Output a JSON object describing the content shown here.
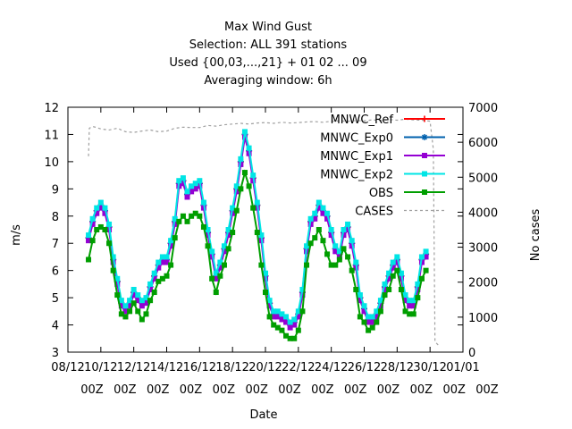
{
  "chart_data": {
    "type": "line",
    "title_lines": [
      "Max Wind Gust",
      "Selection: ALL    391 stations",
      "Used {00,03,...,21} + 01 02 ... 09",
      "Averaging window:  6h"
    ],
    "xlabel": "Date",
    "ylabel": "m/s",
    "y2label": "No cases",
    "ylim": [
      3,
      12
    ],
    "y2lim": [
      0,
      7000
    ],
    "yticks": [
      "3",
      "4",
      "5",
      "6",
      "7",
      "8",
      "9",
      "10",
      "11",
      "12"
    ],
    "y2ticks": [
      "0",
      "1000",
      "2000",
      "3000",
      "4000",
      "5000",
      "6000",
      "7000"
    ],
    "xlim_days": [
      0,
      24
    ],
    "xticks": [
      {
        "day": 0,
        "label": "08/12",
        "hour": "00Z"
      },
      {
        "day": 2,
        "label": "10/12",
        "hour": "00Z"
      },
      {
        "day": 4,
        "label": "12/12",
        "hour": "00Z"
      },
      {
        "day": 6,
        "label": "14/12",
        "hour": "00Z"
      },
      {
        "day": 8,
        "label": "16/12",
        "hour": "00Z"
      },
      {
        "day": 10,
        "label": "18/12",
        "hour": "00Z"
      },
      {
        "day": 12,
        "label": "20/12",
        "hour": "00Z"
      },
      {
        "day": 14,
        "label": "22/12",
        "hour": "00Z"
      },
      {
        "day": 16,
        "label": "24/12",
        "hour": "00Z"
      },
      {
        "day": 18,
        "label": "26/12",
        "hour": "00Z"
      },
      {
        "day": 20,
        "label": "28/12",
        "hour": "00Z"
      },
      {
        "day": 22,
        "label": "30/12",
        "hour": "00Z"
      },
      {
        "day": 24,
        "label": "01/01",
        "hour": "00Z"
      }
    ],
    "legend_position": "top-right",
    "grid": false,
    "x_days": [
      1.25,
      1.5,
      1.75,
      2,
      2.25,
      2.5,
      2.75,
      3,
      3.25,
      3.5,
      3.75,
      4,
      4.25,
      4.5,
      4.75,
      5,
      5.25,
      5.5,
      5.75,
      6,
      6.25,
      6.5,
      6.75,
      7,
      7.25,
      7.5,
      7.75,
      8,
      8.25,
      8.5,
      8.75,
      9,
      9.25,
      9.5,
      9.75,
      10,
      10.25,
      10.5,
      10.75,
      11,
      11.25,
      11.5,
      11.75,
      12,
      12.25,
      12.5,
      12.75,
      13,
      13.25,
      13.5,
      13.75,
      14,
      14.25,
      14.5,
      14.75,
      15,
      15.25,
      15.5,
      15.75,
      16,
      16.25,
      16.5,
      16.75,
      17,
      17.25,
      17.5,
      17.75,
      18,
      18.25,
      18.5,
      18.75,
      19,
      19.25,
      19.5,
      19.75,
      20,
      20.25,
      20.5,
      20.75,
      21,
      21.25,
      21.5,
      21.75,
      22,
      22.25,
      22.5
    ],
    "series": [
      {
        "name": "MNWC_Ref",
        "color": "#ff0000",
        "marker": "plus",
        "values": [
          7.2,
          7.8,
          8.2,
          8.4,
          8.2,
          7.6,
          6.4,
          5.6,
          4.8,
          4.6,
          4.8,
          5.2,
          5.0,
          4.8,
          4.9,
          5.4,
          5.8,
          6.2,
          6.4,
          6.4,
          7.0,
          7.8,
          9.2,
          9.3,
          8.8,
          9.0,
          9.1,
          9.2,
          8.4,
          7.4,
          6.6,
          5.8,
          6.2,
          6.8,
          7.4,
          8.2,
          9.0,
          10.0,
          11.0,
          10.4,
          9.4,
          8.4,
          7.2,
          5.8,
          4.8,
          4.4,
          4.4,
          4.3,
          4.2,
          4.0,
          4.1,
          4.4,
          5.2,
          6.8,
          7.8,
          8.0,
          8.4,
          8.2,
          8.0,
          7.4,
          6.8,
          6.6,
          7.4,
          7.6,
          7.0,
          6.2,
          5.0,
          4.6,
          4.2,
          4.2,
          4.4,
          4.8,
          5.4,
          5.8,
          6.2,
          6.4,
          5.8,
          5.0,
          4.8,
          4.8,
          5.4,
          6.4,
          6.6
        ]
      },
      {
        "name": "MNWC_Exp0",
        "color": "#0060ad",
        "marker": "star",
        "values": [
          7.2,
          7.8,
          8.2,
          8.4,
          8.2,
          7.6,
          6.4,
          5.6,
          4.8,
          4.6,
          4.8,
          5.2,
          5.0,
          4.8,
          4.9,
          5.4,
          5.8,
          6.2,
          6.4,
          6.4,
          7.0,
          7.8,
          9.2,
          9.3,
          8.8,
          9.0,
          9.1,
          9.2,
          8.4,
          7.4,
          6.6,
          5.8,
          6.2,
          6.8,
          7.4,
          8.2,
          9.0,
          10.0,
          11.0,
          10.4,
          9.4,
          8.4,
          7.2,
          5.8,
          4.8,
          4.4,
          4.4,
          4.3,
          4.2,
          4.0,
          4.1,
          4.4,
          5.2,
          6.8,
          7.8,
          8.0,
          8.4,
          8.2,
          8.0,
          7.4,
          6.8,
          6.6,
          7.4,
          7.6,
          7.0,
          6.2,
          5.0,
          4.6,
          4.2,
          4.2,
          4.4,
          4.8,
          5.4,
          5.8,
          6.2,
          6.4,
          5.8,
          5.0,
          4.8,
          4.8,
          5.4,
          6.4,
          6.6
        ]
      },
      {
        "name": "MNWC_Exp1",
        "color": "#9400d3",
        "marker": "square",
        "values": [
          7.1,
          7.7,
          8.1,
          8.3,
          8.1,
          7.5,
          6.3,
          5.5,
          4.7,
          4.5,
          4.7,
          5.1,
          4.9,
          4.7,
          4.8,
          5.3,
          5.7,
          6.1,
          6.3,
          6.3,
          6.9,
          7.7,
          9.1,
          9.2,
          8.7,
          8.9,
          9.0,
          9.1,
          8.3,
          7.3,
          6.5,
          5.7,
          6.1,
          6.7,
          7.3,
          8.1,
          8.9,
          9.9,
          10.9,
          10.3,
          9.3,
          8.3,
          7.1,
          5.7,
          4.7,
          4.3,
          4.3,
          4.2,
          4.1,
          3.9,
          4.0,
          4.3,
          5.1,
          6.7,
          7.7,
          7.9,
          8.3,
          8.1,
          7.9,
          7.3,
          6.7,
          6.5,
          7.3,
          7.5,
          6.9,
          6.1,
          4.9,
          4.5,
          4.1,
          4.1,
          4.3,
          4.7,
          5.3,
          5.7,
          6.1,
          6.3,
          5.7,
          4.9,
          4.7,
          4.7,
          5.3,
          6.3,
          6.5
        ]
      },
      {
        "name": "MNWC_Exp2",
        "color": "#00e5e5",
        "marker": "square",
        "values": [
          7.3,
          7.9,
          8.3,
          8.5,
          8.3,
          7.7,
          6.5,
          5.7,
          4.9,
          4.7,
          4.9,
          5.3,
          5.1,
          4.9,
          5.0,
          5.5,
          5.9,
          6.3,
          6.5,
          6.5,
          7.1,
          7.9,
          9.3,
          9.4,
          8.9,
          9.1,
          9.2,
          9.3,
          8.5,
          7.5,
          6.7,
          5.9,
          6.3,
          6.9,
          7.5,
          8.3,
          9.1,
          10.1,
          11.1,
          10.5,
          9.5,
          8.5,
          7.3,
          5.9,
          4.9,
          4.5,
          4.5,
          4.4,
          4.3,
          4.1,
          4.2,
          4.5,
          5.3,
          6.9,
          7.9,
          8.1,
          8.5,
          8.3,
          8.1,
          7.5,
          6.9,
          6.7,
          7.5,
          7.7,
          7.1,
          6.3,
          5.1,
          4.7,
          4.3,
          4.3,
          4.5,
          4.9,
          5.5,
          5.9,
          6.3,
          6.5,
          5.9,
          5.1,
          4.9,
          4.9,
          5.5,
          6.5,
          6.7
        ]
      },
      {
        "name": "OBS",
        "color": "#009e00",
        "marker": "square",
        "values": [
          6.4,
          7.1,
          7.5,
          7.6,
          7.5,
          7.0,
          6.0,
          5.1,
          4.4,
          4.3,
          4.5,
          4.8,
          4.5,
          4.2,
          4.4,
          4.9,
          5.2,
          5.6,
          5.7,
          5.8,
          6.2,
          7.2,
          7.8,
          8.0,
          7.8,
          8.0,
          8.1,
          8.0,
          7.6,
          6.9,
          5.7,
          5.2,
          5.8,
          6.2,
          6.8,
          7.4,
          8.2,
          9.0,
          9.6,
          9.1,
          8.3,
          7.4,
          6.2,
          5.2,
          4.3,
          4.0,
          3.9,
          3.8,
          3.6,
          3.5,
          3.5,
          3.8,
          4.5,
          6.2,
          7.0,
          7.2,
          7.5,
          7.1,
          6.6,
          6.2,
          6.2,
          6.4,
          6.8,
          6.5,
          6.0,
          5.3,
          4.3,
          4.1,
          3.8,
          3.9,
          4.1,
          4.5,
          5.1,
          5.3,
          5.8,
          6.0,
          5.3,
          4.5,
          4.4,
          4.4,
          5.0,
          5.7,
          6.0
        ]
      },
      {
        "name": "CASES",
        "color": "#a0a0a0",
        "marker": "none",
        "axis": "y2",
        "x_days": [
          1.25,
          1.3,
          1.5,
          1.75,
          2,
          2.5,
          3,
          3.5,
          4,
          4.5,
          5,
          5.5,
          6,
          6.5,
          7,
          7.5,
          8,
          8.5,
          9,
          9.5,
          10,
          10.5,
          11,
          11.5,
          12,
          12.5,
          13,
          13.5,
          14,
          14.5,
          15,
          15.5,
          16,
          16.5,
          17,
          17.5,
          18,
          18.5,
          19,
          19.5,
          20,
          20.5,
          21,
          21.5,
          22,
          22.2,
          22.3,
          22.5
        ],
        "values": [
          5600,
          6400,
          6450,
          6420,
          6380,
          6350,
          6400,
          6300,
          6280,
          6320,
          6350,
          6300,
          6320,
          6400,
          6430,
          6420,
          6420,
          6480,
          6460,
          6500,
          6520,
          6540,
          6520,
          6550,
          6560,
          6540,
          6570,
          6550,
          6560,
          6580,
          6590,
          6570,
          6600,
          6610,
          6600,
          6620,
          6610,
          6640,
          6620,
          6650,
          6630,
          6660,
          6640,
          6630,
          6600,
          5800,
          300,
          200
        ]
      }
    ]
  }
}
